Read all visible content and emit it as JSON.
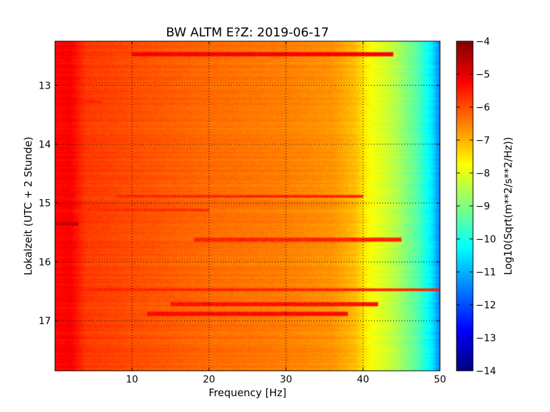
{
  "chart_data": {
    "type": "heatmap",
    "title": "BW ALTM E?Z: 2019-06-17",
    "xlabel": "Frequency [Hz]",
    "ylabel": "Lokalzeit (UTC + 2 Stunde)",
    "xlim": [
      0,
      50
    ],
    "ylim": [
      12.25,
      17.85
    ],
    "y_inverted": true,
    "x_ticks": [
      10,
      20,
      30,
      40,
      50
    ],
    "y_ticks": [
      13,
      14,
      15,
      16,
      17
    ],
    "grid": true,
    "colormap": "jet",
    "colorbar": {
      "label": "Log10(Sqrt(m**2/s**2/Hz))",
      "min": -14,
      "max": -4,
      "ticks": [
        -4,
        -5,
        -6,
        -7,
        -8,
        -9,
        -10,
        -11,
        -12,
        -13,
        -14
      ]
    },
    "spectrum_profile": [
      {
        "freq": 0.5,
        "value": -5.3
      },
      {
        "freq": 2,
        "value": -5.2
      },
      {
        "freq": 4,
        "value": -5.8
      },
      {
        "freq": 10,
        "value": -6.0
      },
      {
        "freq": 20,
        "value": -6.3
      },
      {
        "freq": 30,
        "value": -6.5
      },
      {
        "freq": 36,
        "value": -6.7
      },
      {
        "freq": 39,
        "value": -7.1
      },
      {
        "freq": 41,
        "value": -7.8
      },
      {
        "freq": 44,
        "value": -8.4
      },
      {
        "freq": 47,
        "value": -9.4
      },
      {
        "freq": 49,
        "value": -10.5
      },
      {
        "freq": 50,
        "value": -11.5
      }
    ],
    "strong_bands": [
      {
        "time": 12.47,
        "value": -5.2,
        "freq_range": [
          10,
          44
        ]
      },
      {
        "time": 13.28,
        "value": -5.6,
        "freq_range": [
          0,
          6
        ]
      },
      {
        "time": 14.88,
        "value": -5.6,
        "freq_range": [
          8,
          40
        ]
      },
      {
        "time": 15.12,
        "value": -5.7,
        "freq_range": [
          3,
          20
        ]
      },
      {
        "time": 15.35,
        "value": -4.6,
        "freq_range": [
          0,
          3
        ]
      },
      {
        "time": 15.62,
        "value": -5.6,
        "freq_range": [
          18,
          45
        ]
      },
      {
        "time": 16.48,
        "value": -5.6,
        "freq_range": [
          0,
          50
        ]
      },
      {
        "time": 16.72,
        "value": -5.4,
        "freq_range": [
          15,
          42
        ]
      },
      {
        "time": 16.88,
        "value": -5.3,
        "freq_range": [
          12,
          38
        ]
      }
    ]
  }
}
